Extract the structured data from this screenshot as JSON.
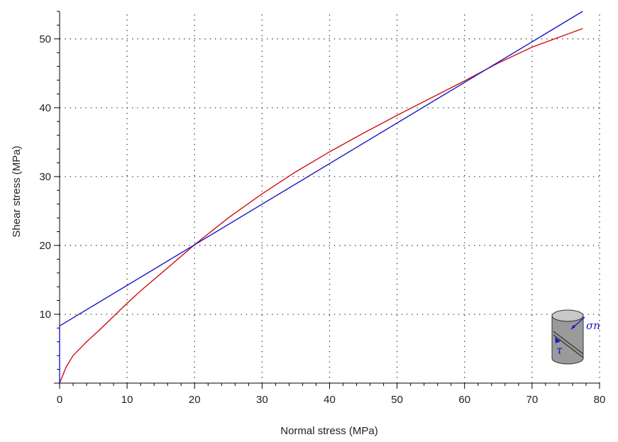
{
  "chart_data": {
    "type": "line",
    "xlabel": "Normal stress (MPa)",
    "ylabel": "Shear stress (MPa)",
    "xlim": [
      0,
      80
    ],
    "ylim": [
      0,
      54
    ],
    "xticks": [
      "0",
      "10",
      "20",
      "30",
      "40",
      "50",
      "60",
      "70",
      "80"
    ],
    "yticks": [
      "10",
      "20",
      "30",
      "40",
      "50"
    ],
    "grid": true,
    "series": [
      {
        "color": "#d01010",
        "x": [
          0,
          1,
          2,
          4,
          6,
          8,
          10,
          12,
          15,
          20,
          25,
          30,
          35,
          40,
          45,
          50,
          55,
          60,
          65,
          70,
          77.5
        ],
        "y": [
          0,
          2.4,
          4.0,
          6.0,
          7.8,
          9.7,
          11.6,
          13.4,
          15.9,
          20.1,
          24.0,
          27.5,
          30.7,
          33.6,
          36.3,
          38.9,
          41.4,
          43.9,
          46.5,
          48.8,
          51.5
        ]
      },
      {
        "color": "#1818c8",
        "x": [
          0,
          77.5
        ],
        "y": [
          8.3,
          54.0
        ]
      }
    ],
    "inset_icon": {
      "name": "shear-cylinder-icon",
      "labels": [
        "σn",
        "τ"
      ]
    }
  }
}
